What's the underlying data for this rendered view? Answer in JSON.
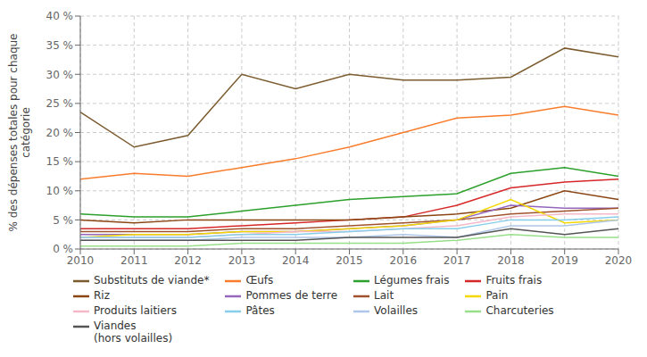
{
  "chart_data": {
    "type": "line",
    "x": [
      2010,
      2011,
      2012,
      2013,
      2014,
      2015,
      2016,
      2017,
      2018,
      2019,
      2020
    ],
    "series": [
      {
        "name": "Substituts de viande*",
        "color": "#7B5B2E",
        "values": [
          23.5,
          17.5,
          19.5,
          30.0,
          27.5,
          30.0,
          29.0,
          29.0,
          29.5,
          34.5,
          33.0
        ]
      },
      {
        "name": "Œufs",
        "color": "#F97C2C",
        "values": [
          12.0,
          13.0,
          12.5,
          14.0,
          15.5,
          17.5,
          20.0,
          22.5,
          23.0,
          24.5,
          23.0
        ]
      },
      {
        "name": "Légumes frais",
        "color": "#2CA02C",
        "values": [
          6.0,
          5.5,
          5.5,
          6.5,
          7.5,
          8.5,
          9.0,
          9.5,
          13.0,
          14.0,
          12.5
        ]
      },
      {
        "name": "Fruits frais",
        "color": "#D62728",
        "values": [
          3.5,
          3.5,
          3.5,
          4.0,
          4.5,
          5.0,
          5.5,
          7.5,
          10.5,
          11.5,
          12.0
        ]
      },
      {
        "name": "Riz",
        "color": "#8B4513",
        "values": [
          5.0,
          4.5,
          5.0,
          5.0,
          5.0,
          5.0,
          5.5,
          6.0,
          7.0,
          10.0,
          8.5
        ]
      },
      {
        "name": "Pommes de terre",
        "color": "#9467BD",
        "values": [
          2.5,
          2.5,
          2.5,
          3.0,
          3.0,
          3.5,
          4.0,
          5.0,
          7.5,
          7.0,
          7.0
        ]
      },
      {
        "name": "Lait",
        "color": "#A0522D",
        "values": [
          3.0,
          3.0,
          3.0,
          3.5,
          3.5,
          4.0,
          4.5,
          5.0,
          6.0,
          6.5,
          7.0
        ]
      },
      {
        "name": "Pain",
        "color": "#F5D800",
        "values": [
          2.0,
          2.5,
          2.5,
          3.0,
          3.0,
          3.5,
          4.0,
          5.0,
          8.5,
          4.5,
          5.0
        ]
      },
      {
        "name": "Produits laitiers",
        "color": "#F4B8C8",
        "values": [
          2.0,
          2.0,
          2.0,
          2.5,
          3.0,
          3.0,
          3.5,
          4.0,
          5.5,
          6.0,
          6.0
        ]
      },
      {
        "name": "Pâtes",
        "color": "#87CEEB",
        "values": [
          2.0,
          2.0,
          2.0,
          2.5,
          2.5,
          3.0,
          3.5,
          3.5,
          5.0,
          5.0,
          5.5
        ]
      },
      {
        "name": "Volailles",
        "color": "#AEC7E8",
        "values": [
          1.5,
          1.5,
          1.5,
          2.0,
          2.0,
          2.0,
          2.5,
          2.0,
          4.0,
          4.0,
          5.0
        ]
      },
      {
        "name": "Charcuteries",
        "color": "#98DF8A",
        "values": [
          0.5,
          0.5,
          0.5,
          1.0,
          1.0,
          1.0,
          1.0,
          1.5,
          2.5,
          2.0,
          2.0
        ]
      },
      {
        "name": "Viandes\n(hors volailles)",
        "color": "#555555",
        "values": [
          1.5,
          1.5,
          1.5,
          1.5,
          1.5,
          2.0,
          2.0,
          2.0,
          3.5,
          2.5,
          3.5
        ]
      }
    ],
    "y_label": "% des dépenses totales pour chaque\ncatégorie",
    "xlim": [
      2010,
      2020
    ],
    "xticks": [
      2010,
      2011,
      2012,
      2013,
      2014,
      2015,
      2016,
      2017,
      2018,
      2019,
      2020
    ],
    "ylim": [
      0,
      40
    ],
    "yticks": [
      {
        "value": 0,
        "label": "0 %"
      },
      {
        "value": 5,
        "label": "5 %"
      },
      {
        "value": 10,
        "label": "10 %"
      },
      {
        "value": 15,
        "label": "15 %"
      },
      {
        "value": 20,
        "label": "20 %"
      },
      {
        "value": 25,
        "label": "25 %"
      },
      {
        "value": 30,
        "label": "30 %"
      },
      {
        "value": 35,
        "label": "35 %"
      },
      {
        "value": 40,
        "label": "40 %"
      }
    ],
    "grid": true,
    "legend": "bottom"
  }
}
